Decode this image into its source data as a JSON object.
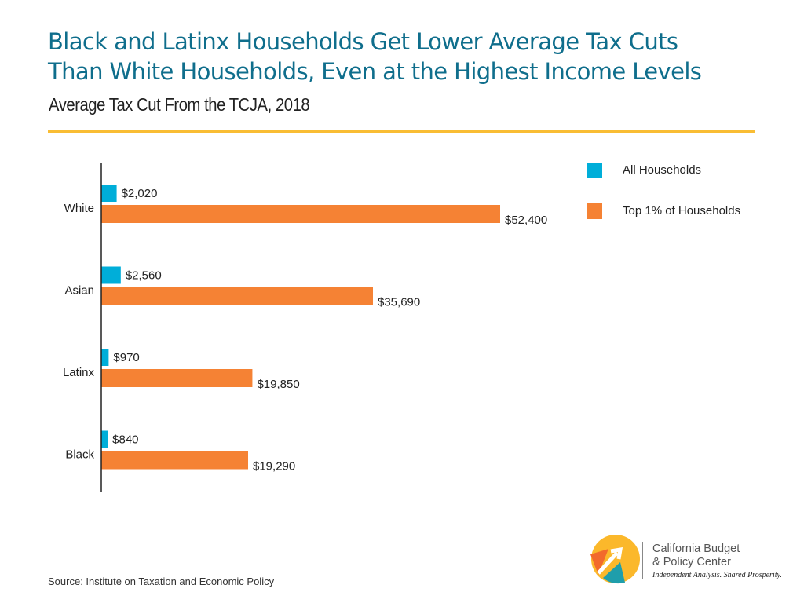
{
  "title_lines": [
    "Black and Latinx Households Get Lower Average Tax Cuts",
    "Than White Households, Even at the Highest Income Levels"
  ],
  "subtitle": "Average Tax Cut From the TCJA, 2018",
  "source": "Source: Institute on Taxation and Economic Policy",
  "logo": {
    "line1": "California Budget",
    "line2": "& Policy Center",
    "tagline": "Independent Analysis. Shared Prosperity."
  },
  "colors": {
    "title": "#0f6e8c",
    "all": "#00aed9",
    "top1": "#f58234",
    "rule": "#f9bd34"
  },
  "chart_data": {
    "type": "bar",
    "orientation": "horizontal",
    "title": "Average Tax Cut From the TCJA, 2018",
    "categories": [
      "White",
      "Asian",
      "Latinx",
      "Black"
    ],
    "series": [
      {
        "name": "All Households",
        "color": "#00aed9",
        "values": [
          2020,
          2560,
          970,
          840
        ],
        "labels": [
          "$2,020",
          "$2,560",
          "$970",
          "$840"
        ]
      },
      {
        "name": "Top 1% of Households",
        "color": "#f58234",
        "values": [
          52400,
          35690,
          19850,
          19290
        ],
        "labels": [
          "$52,400",
          "$35,690",
          "$19,850",
          "$19,290"
        ]
      }
    ],
    "legend": "top-right",
    "grid": false
  }
}
